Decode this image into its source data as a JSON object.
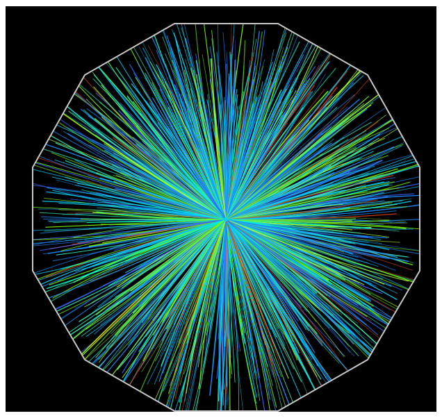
{
  "image": {
    "subject": "particle-track-event-display",
    "background_color": "#000000",
    "outer_margin_color": "#ffffff",
    "detector_outline_color": "#c8c8c8",
    "detector_outline_shape": "dodecagon",
    "track_palette": [
      "#1e8cff",
      "#00d4ff",
      "#32e6b4",
      "#7cfc00",
      "#b4ff32",
      "#d23c14",
      "#3c64ff",
      "#00ffc8"
    ],
    "icon": "collision-burst-icon"
  }
}
